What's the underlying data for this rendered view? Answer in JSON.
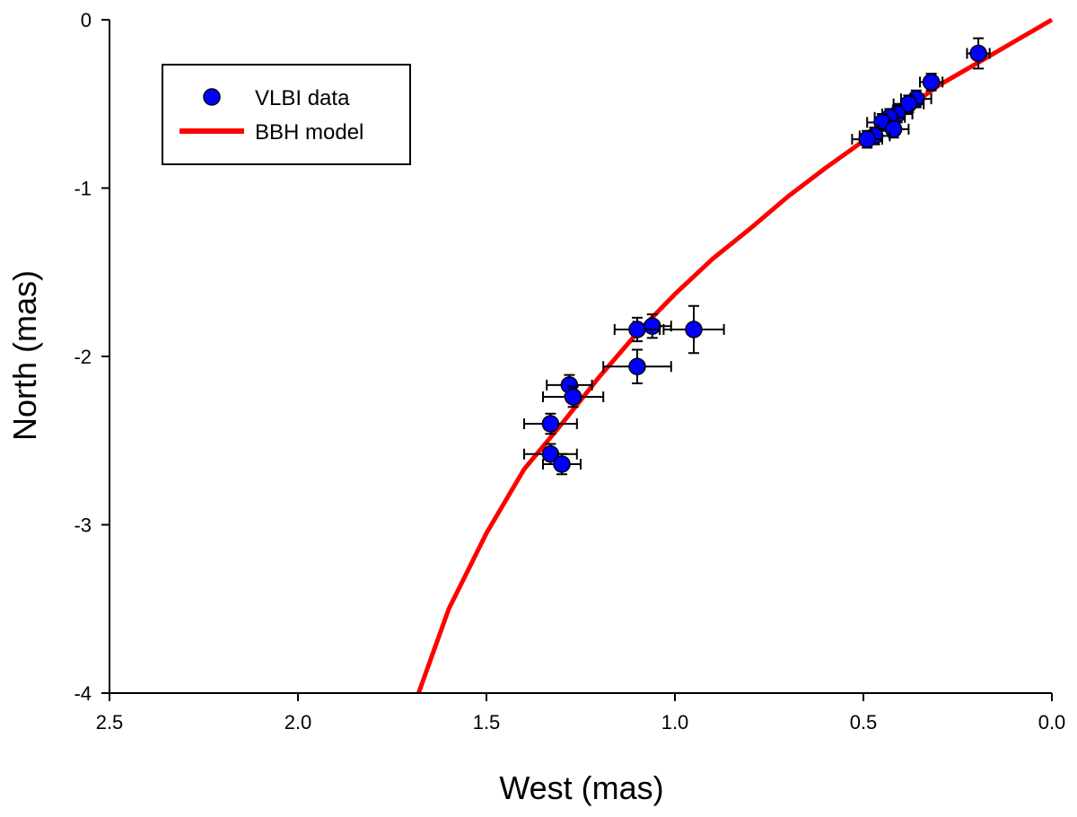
{
  "chart_data": {
    "type": "scatter",
    "title": "",
    "xlabel": "West (mas)",
    "ylabel": "North (mas)",
    "xlim": [
      2.5,
      0.0
    ],
    "ylim": [
      -4,
      0
    ],
    "x_inverted": true,
    "grid": false,
    "xticks": [
      2.5,
      2.0,
      1.5,
      1.0,
      0.5,
      0.0
    ],
    "xtick_labels": [
      "2.5",
      "2.0",
      "1.5",
      "1.0",
      "0.5",
      "0.0"
    ],
    "yticks": [
      0,
      -1,
      -2,
      -3,
      -4
    ],
    "ytick_labels": [
      "0",
      "-1",
      "-2",
      "-3",
      "-4"
    ],
    "legend": {
      "position": "top-left",
      "entries": [
        {
          "label": "VLBI data",
          "marker": "circle",
          "color": "#0000ff"
        },
        {
          "label": "BBH model",
          "marker": "line",
          "color": "#ff0000"
        }
      ]
    },
    "series": [
      {
        "name": "VLBI data",
        "type": "scatter",
        "color": "#0000ff",
        "points": [
          {
            "x": 0.195,
            "y": -0.2,
            "xerr": 0.03,
            "yerr": 0.09
          },
          {
            "x": 0.32,
            "y": -0.37,
            "xerr": 0.03,
            "yerr": 0.05
          },
          {
            "x": 0.36,
            "y": -0.47,
            "xerr": 0.04,
            "yerr": 0.05
          },
          {
            "x": 0.38,
            "y": -0.5,
            "xerr": 0.04,
            "yerr": 0.05
          },
          {
            "x": 0.41,
            "y": -0.56,
            "xerr": 0.04,
            "yerr": 0.05
          },
          {
            "x": 0.43,
            "y": -0.58,
            "xerr": 0.04,
            "yerr": 0.05
          },
          {
            "x": 0.45,
            "y": -0.61,
            "xerr": 0.04,
            "yerr": 0.05
          },
          {
            "x": 0.42,
            "y": -0.65,
            "xerr": 0.04,
            "yerr": 0.05
          },
          {
            "x": 0.47,
            "y": -0.69,
            "xerr": 0.04,
            "yerr": 0.05
          },
          {
            "x": 0.49,
            "y": -0.71,
            "xerr": 0.04,
            "yerr": 0.05
          },
          {
            "x": 1.06,
            "y": -1.82,
            "xerr": 0.05,
            "yerr": 0.07
          },
          {
            "x": 1.1,
            "y": -1.84,
            "xerr": 0.06,
            "yerr": 0.07
          },
          {
            "x": 0.95,
            "y": -1.84,
            "xerr": 0.08,
            "yerr": 0.14
          },
          {
            "x": 1.1,
            "y": -2.06,
            "xerr": 0.09,
            "yerr": 0.1
          },
          {
            "x": 1.28,
            "y": -2.17,
            "xerr": 0.06,
            "yerr": 0.06
          },
          {
            "x": 1.27,
            "y": -2.24,
            "xerr": 0.08,
            "yerr": 0.06
          },
          {
            "x": 1.33,
            "y": -2.4,
            "xerr": 0.07,
            "yerr": 0.06
          },
          {
            "x": 1.33,
            "y": -2.58,
            "xerr": 0.07,
            "yerr": 0.06
          },
          {
            "x": 1.3,
            "y": -2.64,
            "xerr": 0.05,
            "yerr": 0.06
          }
        ]
      },
      {
        "name": "BBH model",
        "type": "line",
        "color": "#ff0000",
        "x": [
          0.0,
          0.1,
          0.2,
          0.3,
          0.4,
          0.5,
          0.6,
          0.7,
          0.8,
          0.9,
          1.0,
          1.1,
          1.2,
          1.3,
          1.4,
          1.5,
          1.6,
          1.68
        ],
        "y": [
          0.0,
          -0.13,
          -0.26,
          -0.39,
          -0.55,
          -0.72,
          -0.88,
          -1.05,
          -1.24,
          -1.42,
          -1.63,
          -1.86,
          -2.12,
          -2.4,
          -2.67,
          -3.05,
          -3.5,
          -4.0
        ]
      }
    ]
  }
}
